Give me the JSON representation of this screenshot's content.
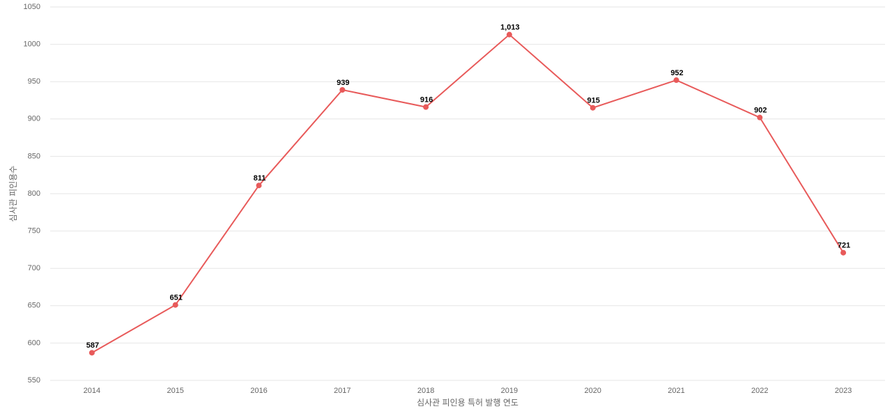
{
  "chart_data": {
    "type": "line",
    "x_label": "심사관 피인용 특허 발행 연도",
    "y_label": "심사관 피인용수",
    "categories": [
      "2014",
      "2015",
      "2016",
      "2017",
      "2018",
      "2019",
      "2020",
      "2021",
      "2022",
      "2023"
    ],
    "series": [
      {
        "name": "심사관 피인용수",
        "color": "#e85a5a",
        "values": [
          587,
          651,
          811,
          939,
          916,
          1013,
          915,
          952,
          902,
          721
        ],
        "value_labels": [
          "587",
          "651",
          "811",
          "939",
          "916",
          "1,013",
          "915",
          "952",
          "902",
          "721"
        ]
      }
    ],
    "ylim": [
      550,
      1050
    ],
    "yticks": [
      550,
      600,
      650,
      700,
      750,
      800,
      850,
      900,
      950,
      1000,
      1050
    ],
    "grid": true
  }
}
